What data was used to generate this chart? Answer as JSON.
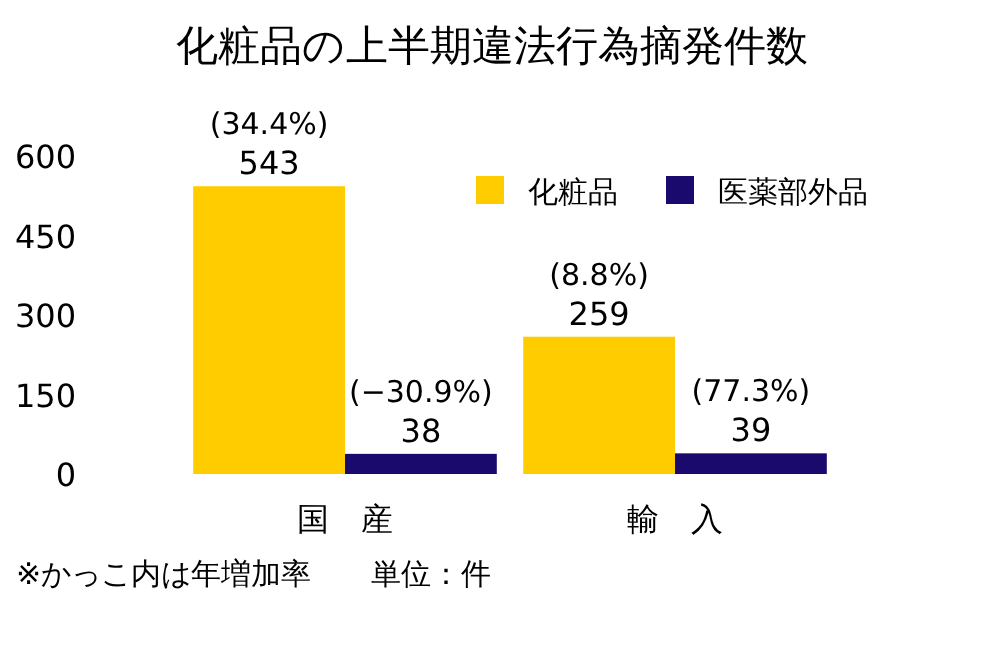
{
  "chart_data": {
    "type": "bar",
    "title": "化粧品の上半期違法行為摘発件数",
    "categories": [
      "国　産",
      "輸　入"
    ],
    "series": [
      {
        "name": "化粧品",
        "color": "#ffcc00",
        "values": [
          543,
          259
        ]
      },
      {
        "name": "医薬部外品",
        "color": "#1a0a6e",
        "values": [
          38,
          39
        ]
      }
    ],
    "ylim": [
      0,
      600
    ],
    "yticks": [
      0,
      150,
      300,
      450,
      600
    ],
    "grid": false,
    "legend": "top right",
    "data_labels": true,
    "annotations": [
      {
        "text": "(34.4%)",
        "x": "国　産",
        "y": 543
      },
      {
        "text": "(−30.9%)",
        "x": "国　産",
        "y": 38
      },
      {
        "text": "(8.8%)",
        "x": "輸　入",
        "y": 259
      },
      {
        "text": "(77.3%)",
        "x": "輸　入",
        "y": 39
      },
      "※かっこ内は年増加率　　単位：件"
    ]
  }
}
